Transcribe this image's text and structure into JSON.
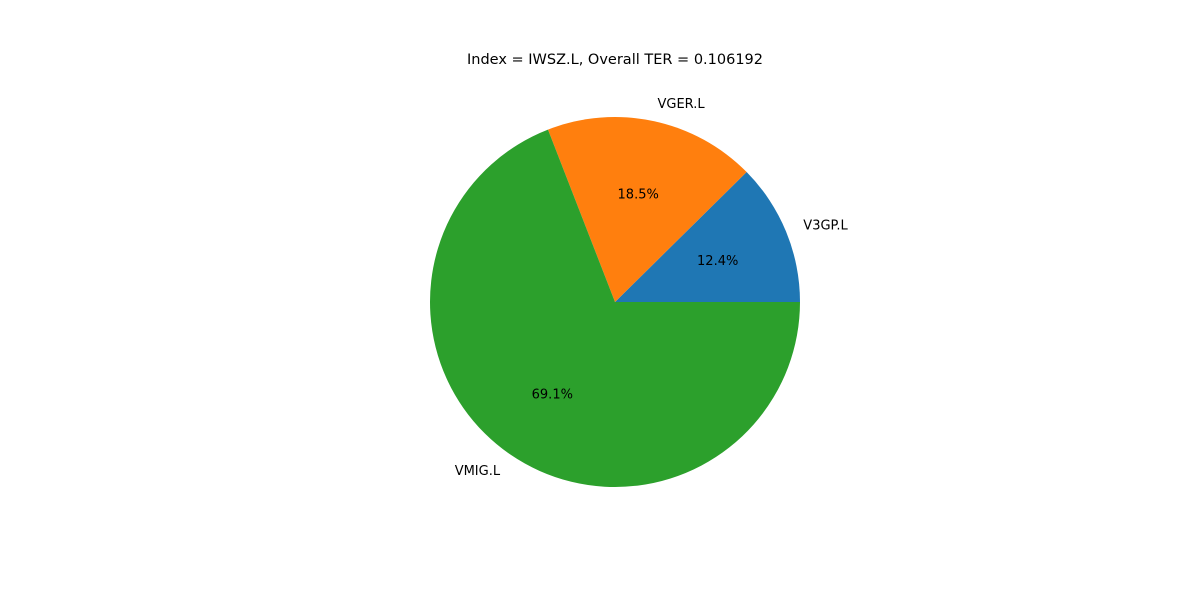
{
  "chart_data": {
    "type": "pie",
    "title": "Index = IWSZ.L, Overall TER = 0.106192",
    "slices": [
      {
        "label": "V3GP.L",
        "value": 12.4,
        "pct_label": "12.4%",
        "color": "#1f77b4"
      },
      {
        "label": "VGER.L",
        "value": 18.5,
        "pct_label": "18.5%",
        "color": "#ff7f0e"
      },
      {
        "label": "VMIG.L",
        "value": 69.1,
        "pct_label": "69.1%",
        "color": "#2ca02c"
      }
    ],
    "start_angle_deg": 0,
    "direction": "counterclockwise",
    "legend": "none"
  }
}
